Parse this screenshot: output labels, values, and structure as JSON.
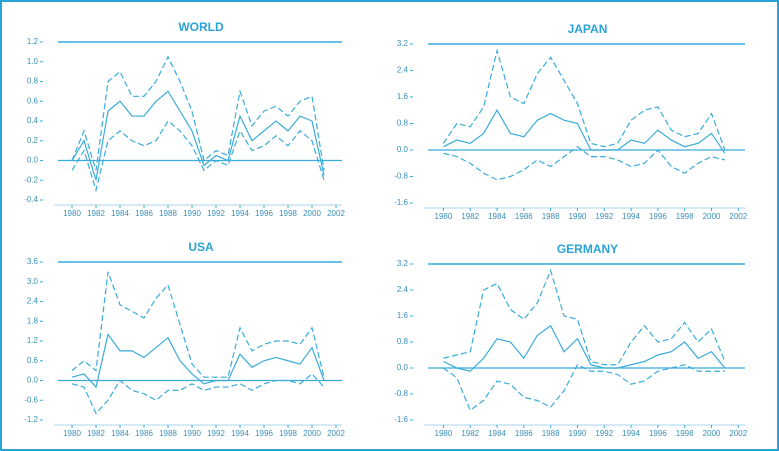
{
  "chart_data": [
    {
      "type": "line",
      "title": "WORLD",
      "x": [
        1980,
        1981,
        1982,
        1983,
        1984,
        1985,
        1986,
        1987,
        1988,
        1989,
        1990,
        1991,
        1992,
        1993,
        1994,
        1995,
        1996,
        1997,
        1998,
        1999,
        2000,
        2001
      ],
      "series": [
        {
          "color": "#39acd9",
          "dash": false,
          "values": [
            0.0,
            0.2,
            -0.2,
            0.5,
            0.6,
            0.45,
            0.45,
            0.6,
            0.7,
            0.5,
            0.3,
            -0.05,
            0.05,
            0.0,
            0.45,
            0.2,
            0.3,
            0.4,
            0.3,
            0.45,
            0.4,
            -0.15
          ]
        },
        {
          "color": "#39acd9",
          "dash": true,
          "values": [
            0.0,
            0.3,
            -0.1,
            0.8,
            0.9,
            0.65,
            0.65,
            0.8,
            1.05,
            0.8,
            0.5,
            0.0,
            0.1,
            0.05,
            0.7,
            0.35,
            0.5,
            0.55,
            0.45,
            0.6,
            0.65,
            -0.1
          ]
        },
        {
          "color": "#39acd9",
          "dash": true,
          "values": [
            -0.1,
            0.1,
            -0.3,
            0.2,
            0.3,
            0.2,
            0.15,
            0.2,
            0.4,
            0.3,
            0.15,
            -0.1,
            0.0,
            -0.05,
            0.3,
            0.1,
            0.15,
            0.25,
            0.15,
            0.3,
            0.2,
            -0.2
          ]
        }
      ],
      "xlim": [
        1979,
        2002.5
      ],
      "xticks": [
        1980,
        1982,
        1984,
        1986,
        1988,
        1990,
        1992,
        1994,
        1996,
        1998,
        2000,
        2002
      ],
      "ylim": [
        -0.4,
        1.2
      ],
      "yticks": [
        -0.4,
        -0.2,
        {
          "value": 0,
          "label": "0.0"
        },
        0.2,
        0.4,
        0.6,
        0.8,
        {
          "value": 1,
          "label": "1.0"
        },
        1.2
      ],
      "zero_line": true
    },
    {
      "type": "line",
      "title": "JAPAN",
      "x": [
        1980,
        1981,
        1982,
        1983,
        1984,
        1985,
        1986,
        1987,
        1988,
        1989,
        1990,
        1991,
        1992,
        1993,
        1994,
        1995,
        1996,
        1997,
        1998,
        1999,
        2000,
        2001
      ],
      "series": [
        {
          "color": "#39acd9",
          "dash": false,
          "values": [
            0.1,
            0.3,
            0.2,
            0.5,
            1.2,
            0.5,
            0.4,
            0.9,
            1.1,
            0.9,
            0.8,
            0.0,
            0.0,
            0.0,
            0.3,
            0.2,
            0.6,
            0.3,
            0.1,
            0.2,
            0.5,
            -0.1
          ]
        },
        {
          "color": "#39acd9",
          "dash": true,
          "values": [
            0.2,
            0.8,
            0.7,
            1.3,
            3.0,
            1.6,
            1.4,
            2.3,
            2.8,
            2.1,
            1.4,
            0.2,
            0.1,
            0.2,
            0.9,
            1.2,
            1.3,
            0.6,
            0.4,
            0.5,
            1.1,
            0.0
          ]
        },
        {
          "color": "#39acd9",
          "dash": true,
          "values": [
            -0.1,
            -0.2,
            -0.4,
            -0.7,
            -0.9,
            -0.8,
            -0.6,
            -0.3,
            -0.5,
            -0.2,
            0.1,
            -0.2,
            -0.2,
            -0.3,
            -0.5,
            -0.4,
            0.0,
            -0.5,
            -0.7,
            -0.4,
            -0.2,
            -0.3
          ]
        }
      ],
      "xlim": [
        1979,
        2002.5
      ],
      "xticks": [
        1980,
        1982,
        1984,
        1986,
        1988,
        1990,
        1992,
        1994,
        1996,
        1998,
        2000,
        2002
      ],
      "ylim": [
        -1.6,
        3.2
      ],
      "yticks": [
        -1.6,
        -0.8,
        {
          "value": 0,
          "label": "0.0"
        },
        0.8,
        1.6,
        2.4,
        3.2
      ],
      "zero_line": true
    },
    {
      "type": "line",
      "title": "USA",
      "x": [
        1980,
        1981,
        1982,
        1983,
        1984,
        1985,
        1986,
        1987,
        1988,
        1989,
        1990,
        1991,
        1992,
        1993,
        1994,
        1995,
        1996,
        1997,
        1998,
        1999,
        2000,
        2001
      ],
      "series": [
        {
          "color": "#39acd9",
          "dash": false,
          "values": [
            0.1,
            0.2,
            -0.2,
            1.4,
            0.9,
            0.9,
            0.7,
            1.0,
            1.3,
            0.6,
            0.2,
            -0.1,
            0.0,
            0.0,
            0.8,
            0.4,
            0.6,
            0.7,
            0.6,
            0.5,
            1.0,
            0.0
          ]
        },
        {
          "color": "#39acd9",
          "dash": true,
          "values": [
            0.3,
            0.6,
            0.3,
            3.3,
            2.3,
            2.1,
            1.9,
            2.5,
            2.9,
            1.7,
            0.5,
            0.1,
            0.1,
            0.1,
            1.6,
            0.9,
            1.1,
            1.2,
            1.2,
            1.1,
            1.6,
            0.1
          ]
        },
        {
          "color": "#39acd9",
          "dash": true,
          "values": [
            -0.1,
            -0.2,
            -1.0,
            -0.6,
            0.0,
            -0.3,
            -0.4,
            -0.6,
            -0.3,
            -0.3,
            -0.1,
            -0.3,
            -0.2,
            -0.2,
            -0.1,
            -0.3,
            -0.1,
            0.0,
            0.0,
            -0.1,
            0.2,
            -0.2
          ]
        }
      ],
      "xlim": [
        1979,
        2002.5
      ],
      "xticks": [
        1980,
        1982,
        1984,
        1986,
        1988,
        1990,
        1992,
        1994,
        1996,
        1998,
        2000,
        2002
      ],
      "ylim": [
        -1.2,
        3.6
      ],
      "yticks": [
        -1.2,
        -0.6,
        {
          "value": 0,
          "label": "0.0"
        },
        0.6,
        1.2,
        1.8,
        2.4,
        {
          "value": 3,
          "label": "3.0"
        },
        3.6
      ],
      "zero_line": true
    },
    {
      "type": "line",
      "title": "GERMANY",
      "x": [
        1980,
        1981,
        1982,
        1983,
        1984,
        1985,
        1986,
        1987,
        1988,
        1989,
        1990,
        1991,
        1992,
        1993,
        1994,
        1995,
        1996,
        1997,
        1998,
        1999,
        2000,
        2001
      ],
      "series": [
        {
          "color": "#39acd9",
          "dash": false,
          "values": [
            0.2,
            0.0,
            -0.1,
            0.3,
            0.9,
            0.8,
            0.3,
            1.0,
            1.3,
            0.5,
            0.9,
            0.1,
            0.0,
            0.0,
            0.1,
            0.2,
            0.4,
            0.5,
            0.8,
            0.3,
            0.5,
            0.0
          ]
        },
        {
          "color": "#39acd9",
          "dash": true,
          "values": [
            0.3,
            0.4,
            0.5,
            2.4,
            2.6,
            1.8,
            1.5,
            2.0,
            3.0,
            1.6,
            1.5,
            0.2,
            0.1,
            0.1,
            0.8,
            1.3,
            0.8,
            0.9,
            1.4,
            0.8,
            1.2,
            0.2
          ]
        },
        {
          "color": "#39acd9",
          "dash": true,
          "values": [
            0.0,
            -0.3,
            -1.3,
            -1.0,
            -0.4,
            -0.5,
            -0.9,
            -1.0,
            -1.2,
            -0.7,
            0.1,
            -0.1,
            -0.1,
            -0.2,
            -0.5,
            -0.4,
            -0.1,
            0.0,
            0.1,
            -0.1,
            -0.1,
            -0.1
          ]
        }
      ],
      "xlim": [
        1979,
        2002.5
      ],
      "xticks": [
        1980,
        1982,
        1984,
        1986,
        1988,
        1990,
        1992,
        1994,
        1996,
        1998,
        2000,
        2002
      ],
      "ylim": [
        -1.6,
        3.2
      ],
      "yticks": [
        -1.6,
        -0.8,
        {
          "value": 0,
          "label": "0.0"
        },
        0.8,
        1.6,
        2.4,
        3.2
      ],
      "zero_line": true
    }
  ]
}
